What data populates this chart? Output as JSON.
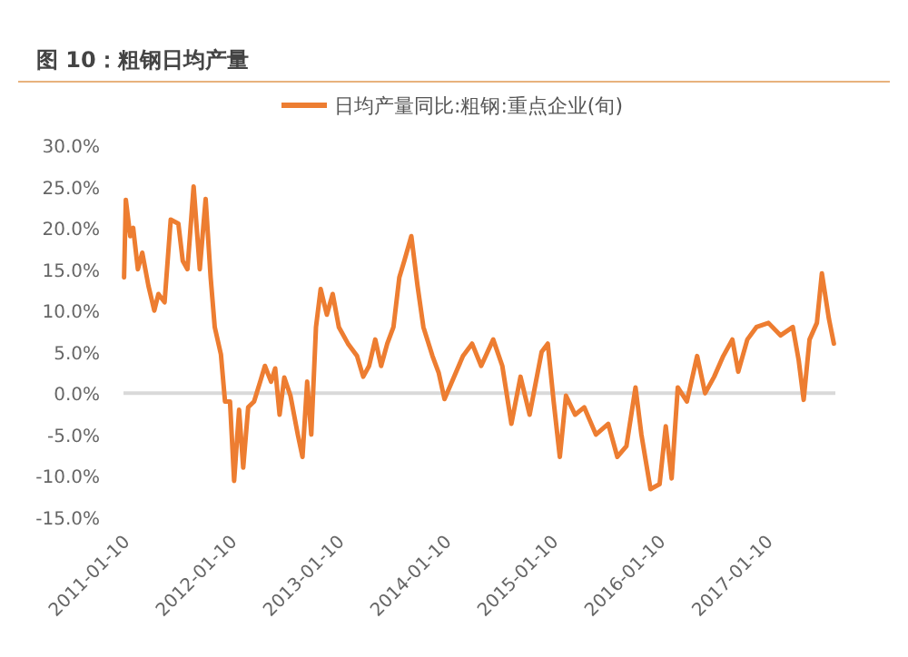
{
  "chart_data": {
    "type": "line",
    "title": "图 10：粗钢日均产量",
    "legend": "top",
    "x": [
      "2011-01-12",
      "2011-01-18",
      "2011-02-02",
      "2011-02-12",
      "2011-02-28",
      "2011-03-15",
      "2011-04-05",
      "2011-04-25",
      "2011-05-09",
      "2011-05-30",
      "2011-06-20",
      "2011-07-16",
      "2011-07-31",
      "2011-08-16",
      "2011-09-06",
      "2011-09-27",
      "2011-10-17",
      "2011-11-03",
      "2011-11-17",
      "2011-12-08",
      "2011-12-22",
      "2012-01-08",
      "2012-01-22",
      "2012-02-08",
      "2012-02-22",
      "2012-03-10",
      "2012-03-30",
      "2012-04-20",
      "2012-05-06",
      "2012-05-27",
      "2012-06-10",
      "2012-06-25",
      "2012-07-11",
      "2012-08-01",
      "2012-08-26",
      "2012-09-11",
      "2012-09-27",
      "2012-10-11",
      "2012-10-27",
      "2012-11-12",
      "2012-12-03",
      "2012-12-23",
      "2013-01-13",
      "2013-02-13",
      "2013-03-16",
      "2013-04-06",
      "2013-04-26",
      "2013-05-17",
      "2013-06-06",
      "2013-06-27",
      "2013-07-18",
      "2013-08-07",
      "2013-08-24",
      "2013-09-17",
      "2013-10-08",
      "2013-10-28",
      "2013-11-28",
      "2013-12-19",
      "2014-01-08",
      "2014-03-12",
      "2014-04-12",
      "2014-05-13",
      "2014-06-23",
      "2014-07-24",
      "2014-08-24",
      "2014-09-24",
      "2014-10-25",
      "2014-12-05",
      "2014-12-26",
      "2015-01-15",
      "2015-02-05",
      "2015-02-26",
      "2015-03-29",
      "2015-04-29",
      "2015-06-08",
      "2015-07-20",
      "2015-08-20",
      "2015-09-20",
      "2015-10-21",
      "2015-11-10",
      "2015-12-11",
      "2016-01-11",
      "2016-02-01",
      "2016-02-21",
      "2016-03-13",
      "2016-04-13",
      "2016-05-18",
      "2016-06-14",
      "2016-07-15",
      "2016-08-15",
      "2016-09-15",
      "2016-10-05",
      "2016-11-05",
      "2016-12-06",
      "2017-01-16",
      "2017-02-26",
      "2017-04-09",
      "2017-04-29",
      "2017-05-16",
      "2017-06-05",
      "2017-06-30",
      "2017-07-17",
      "2017-08-10",
      "2017-08-27"
    ],
    "series": [
      {
        "name": "日均产量同比:粗钢:重点企业(旬)",
        "color": "#ed7d31",
        "values": [
          14,
          23.4,
          19,
          20,
          15,
          17,
          13,
          10,
          12,
          11,
          21,
          20.5,
          16,
          15,
          25,
          15,
          23.5,
          14,
          8,
          4.7,
          -1,
          -1,
          -10.6,
          -2,
          -9,
          -1.7,
          -1,
          1.4,
          3.3,
          1.4,
          3,
          -2.6,
          1.9,
          -0.3,
          -5,
          -7.7,
          1.4,
          -5,
          8,
          12.6,
          9.5,
          12,
          8,
          6,
          4.5,
          2,
          3.3,
          6.5,
          3.3,
          6,
          8,
          14,
          16,
          19,
          13,
          8,
          4.5,
          2.5,
          -0.7,
          4.5,
          6,
          3.3,
          6.5,
          3.3,
          -3.7,
          2,
          -2.6,
          5,
          6,
          -1,
          -7.7,
          -0.3,
          -2.6,
          -1.7,
          -5,
          -3.7,
          -7.7,
          -6.4,
          0.7,
          -5,
          -11.6,
          -11,
          -4,
          -10.3,
          0.7,
          -1,
          4.5,
          0,
          2,
          4.5,
          6.5,
          2.6,
          6.5,
          8,
          8.5,
          7,
          8,
          4,
          -0.8,
          6.5,
          8.5,
          14.5,
          9,
          6
        ]
      }
    ],
    "xlim": [
      "2011-01-10",
      "2017-09-01"
    ],
    "xticks": [
      "2011-01-10",
      "2012-01-10",
      "2013-01-10",
      "2014-01-10",
      "2015-01-10",
      "2016-01-10",
      "2017-01-10"
    ],
    "ylim": [
      -15,
      30
    ],
    "yticks": [
      {
        "value": 30,
        "label": "30.0%"
      },
      {
        "value": 25,
        "label": "25.0%"
      },
      {
        "value": 20,
        "label": "20.0%"
      },
      {
        "value": 15,
        "label": "15.0%"
      },
      {
        "value": 10,
        "label": "10.0%"
      },
      {
        "value": 5,
        "label": "5.0%"
      },
      {
        "value": 0,
        "label": "0.0%"
      },
      {
        "value": -5,
        "label": "-5.0%"
      },
      {
        "value": -10,
        "label": "-10.0%"
      },
      {
        "value": -15,
        "label": "-15.0%"
      }
    ],
    "ref_lines": [
      {
        "axis": "y",
        "value": 0,
        "color": "#d9d9d9"
      }
    ],
    "marker": "none",
    "line_style": "solid"
  }
}
